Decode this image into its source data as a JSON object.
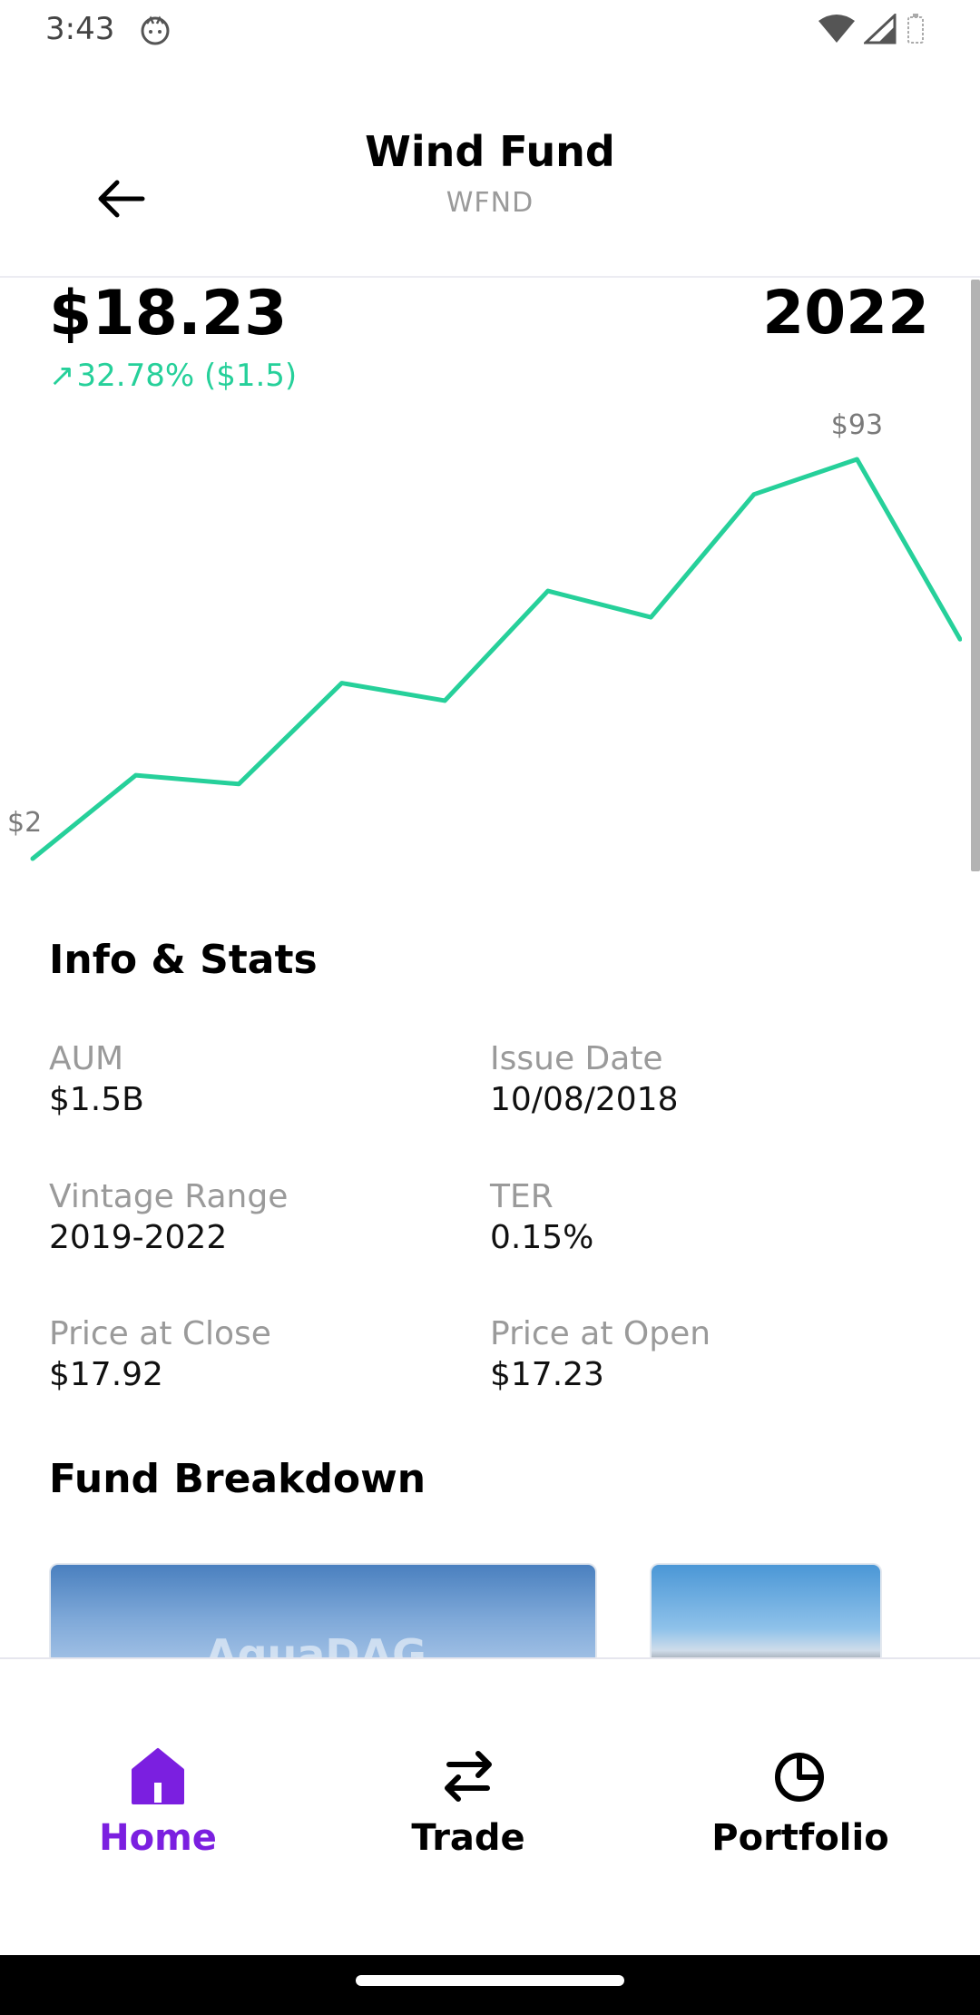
{
  "status_bar": {
    "time": "3:43"
  },
  "header": {
    "title": "Wind Fund",
    "ticker": "WFND"
  },
  "summary": {
    "price": "$18.23",
    "change_arrow": "↗",
    "change": "32.78% ($1.5)",
    "year": "2022"
  },
  "chart_data": {
    "type": "line",
    "series": [
      {
        "values": [
          2,
          21,
          19,
          42,
          38,
          63,
          57,
          85,
          93,
          52
        ]
      }
    ],
    "annotations": {
      "max_label": "$93",
      "min_label": "$2"
    },
    "ylim": [
      2,
      93
    ],
    "grid": false,
    "line_color": "#26d09a"
  },
  "info": {
    "title": "Info & Stats",
    "stats": [
      {
        "label": "AUM",
        "value": "$1.5B"
      },
      {
        "label": "Issue Date",
        "value": "10/08/2018"
      },
      {
        "label": "Vintage Range",
        "value": "2019-2022"
      },
      {
        "label": "TER",
        "value": "0.15%"
      },
      {
        "label": "Price at Close",
        "value": "$17.92"
      },
      {
        "label": "Price at Open",
        "value": "$17.23"
      }
    ]
  },
  "breakdown": {
    "title": "Fund Breakdown",
    "card_logo": "AquaDAG"
  },
  "nav": {
    "items": [
      {
        "label": "Home",
        "icon": "home-icon",
        "active": true
      },
      {
        "label": "Trade",
        "icon": "swap-arrows-icon",
        "active": false
      },
      {
        "label": "Portfolio",
        "icon": "pie-chart-icon",
        "active": false
      }
    ],
    "active_color": "#7b1fe0",
    "inactive_color": "#000000"
  },
  "colors": {
    "accent_green": "#26d09a",
    "accent_purple": "#7b1fe0"
  }
}
